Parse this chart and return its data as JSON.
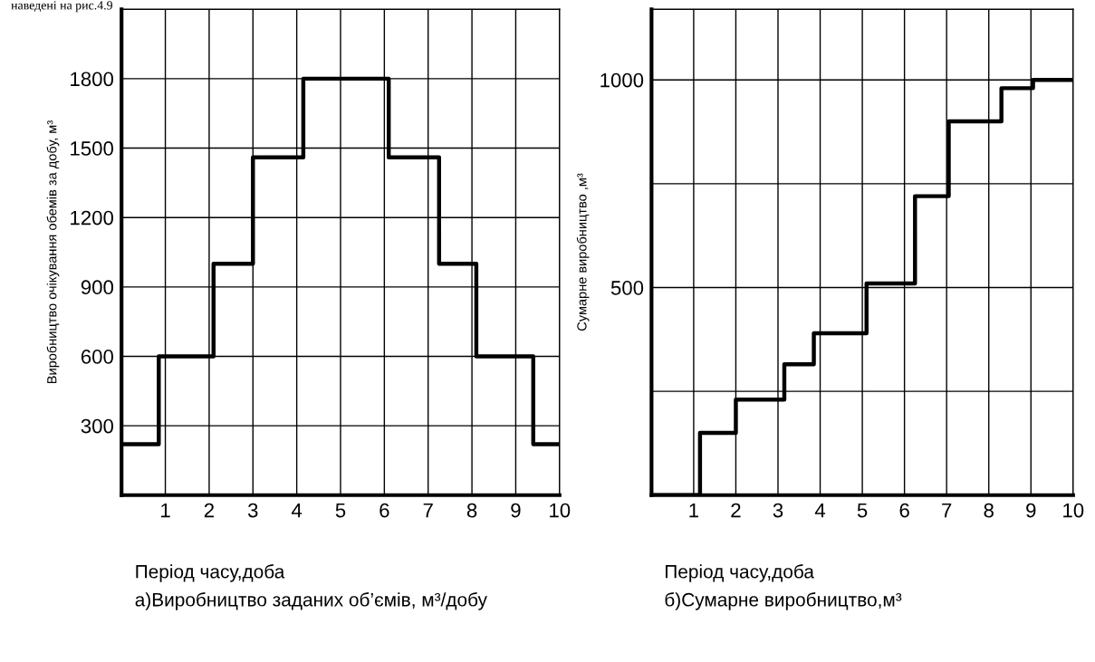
{
  "chart_data": [
    {
      "type": "step",
      "ylabel": "Виробництво очікування обемів за добу, м³",
      "xlabel": "Період часу,доба",
      "annotations": [
        "наведені на рис.4.9",
        "а)Виробництво заданих об’ємів, м³/добу"
      ],
      "series": [
        {
          "color": "#000000",
          "x": [
            0,
            0.85,
            2.1,
            3.0,
            4.15,
            6.1,
            7.25,
            8.1,
            9.4,
            10
          ],
          "values": [
            220,
            600,
            1000,
            1460,
            1800,
            1460,
            1000,
            600,
            220,
            220
          ]
        }
      ],
      "xlim": [
        0,
        10
      ],
      "xticks": [
        1,
        2,
        3,
        4,
        5,
        6,
        7,
        8,
        9,
        10
      ],
      "ylim": [
        0,
        2100
      ],
      "yticks": [
        300,
        600,
        900,
        1200,
        1500,
        1800
      ],
      "grid": true,
      "line_style": "solid",
      "marker": "none"
    },
    {
      "type": "step",
      "ylabel": "Сумарне виробництво ,м³",
      "xlabel": "Період часу,доба",
      "annotations": [
        "б)Сумарне виробництво,м³"
      ],
      "series": [
        {
          "color": "#000000",
          "x": [
            0,
            1.15,
            2.0,
            3.15,
            3.85,
            5.1,
            6.25,
            7.05,
            8.3,
            9.05,
            10
          ],
          "values": [
            0,
            150,
            230,
            315,
            390,
            510,
            720,
            900,
            980,
            1000,
            1000
          ]
        }
      ],
      "xlim": [
        0,
        10
      ],
      "xticks": [
        1,
        2,
        3,
        4,
        5,
        6,
        7,
        8,
        9,
        10
      ],
      "ylim": [
        0,
        1170
      ],
      "yticks": [
        {
          "value": 250,
          "label": null
        },
        500,
        {
          "value": 750,
          "label": null
        },
        1000
      ],
      "grid": true,
      "line_style": "solid",
      "marker": "none"
    }
  ]
}
